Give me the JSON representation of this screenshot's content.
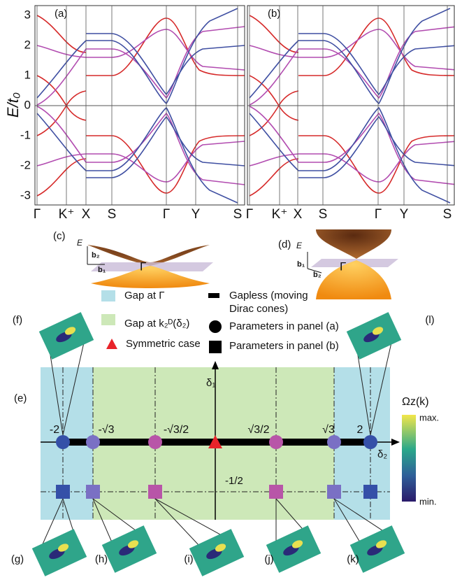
{
  "panel_a": {
    "label": "(a)",
    "x_ticks": [
      "Γ",
      "K⁺",
      "X",
      "S",
      "Γ",
      "Y",
      "S"
    ]
  },
  "panel_b": {
    "label": "(b)",
    "x_ticks": [
      "Γ",
      "K⁺",
      "X",
      "S",
      "Γ",
      "Y",
      "S"
    ]
  },
  "y_axis": {
    "label": "E/t₀",
    "ticks": [
      "3",
      "2",
      "1",
      "0",
      "-1",
      "-2",
      "-3"
    ]
  },
  "panel_c": {
    "label": "(c)",
    "energy": "E",
    "b2": "b₂",
    "b1": "b₁",
    "point": "Γ"
  },
  "panel_d": {
    "label": "(d)",
    "energy": "E",
    "b1": "b₁",
    "b2": "b₂",
    "point": "Γ"
  },
  "legend": {
    "gap_gamma": "Gap at Γ",
    "gap_k": "Gap at k₂ᴰ(δ₂)",
    "symmetric": "Symmetric case",
    "gapless": [
      "Gapless (moving",
      "Dirac cones)"
    ],
    "params_a": "Parameters in panel (a)",
    "params_b": "Parameters in panel (b)"
  },
  "panel_e": {
    "label": "(e)",
    "axis_x": "δ₂",
    "axis_y": "δ₁",
    "x_labels": [
      "-2",
      "-√3",
      "-√3/2",
      "√3/2",
      "√3",
      "2"
    ],
    "y_label": "-1/2",
    "colorbar": {
      "title": "Ωz(k)",
      "max": "max.",
      "min": "min."
    }
  },
  "insets": [
    "(f)",
    "(g)",
    "(h)",
    "(i)",
    "(j)",
    "(k)",
    "(l)"
  ]
}
